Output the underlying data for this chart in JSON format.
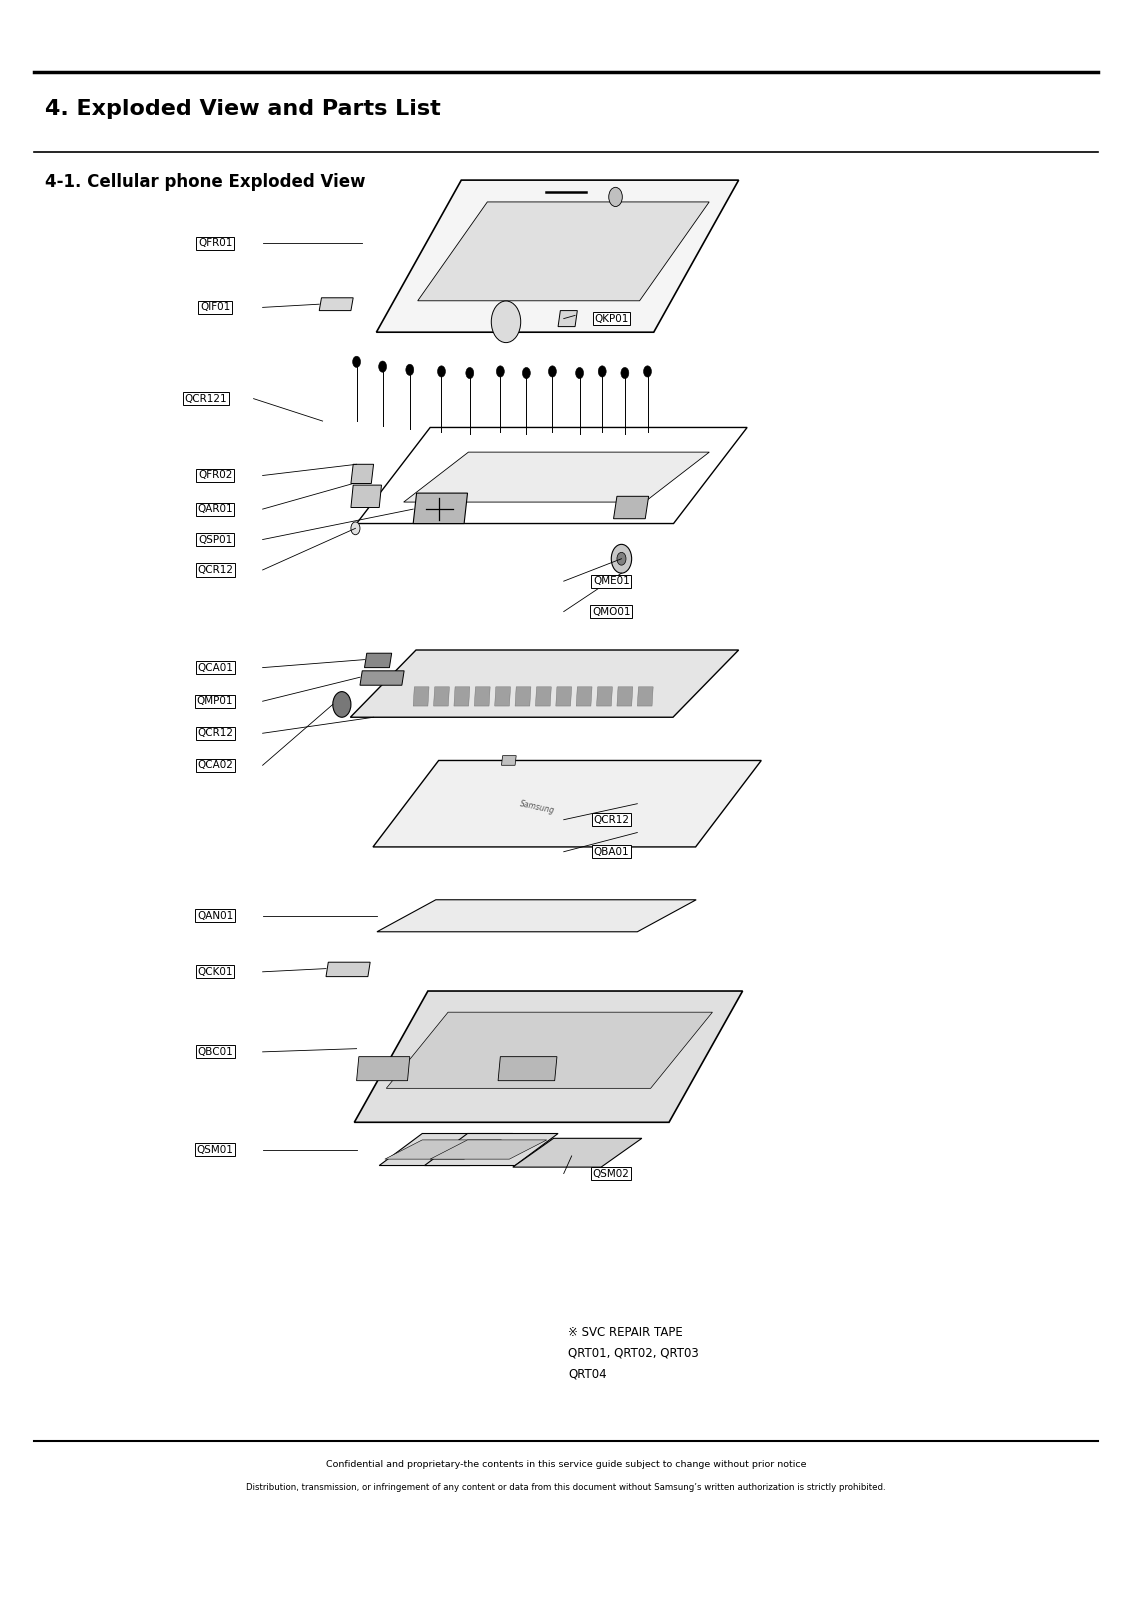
{
  "title": "4. Exploded View and Parts List",
  "subtitle": "4-1. Cellular phone Exploded View",
  "footer_line1": "Confidential and proprietary-the contents in this service guide subject to change without prior notice",
  "footer_line2": "Distribution, transmission, or infringement of any content or data from this document without Samsung’s written authorization is strictly prohibited.",
  "svc_note_line1": "※ SVC REPAIR TAPE",
  "svc_note_line2": "QRT01, QRT02, QRT03",
  "svc_note_line3": "QRT04",
  "bg_color": "#ffffff",
  "text_color": "#000000"
}
